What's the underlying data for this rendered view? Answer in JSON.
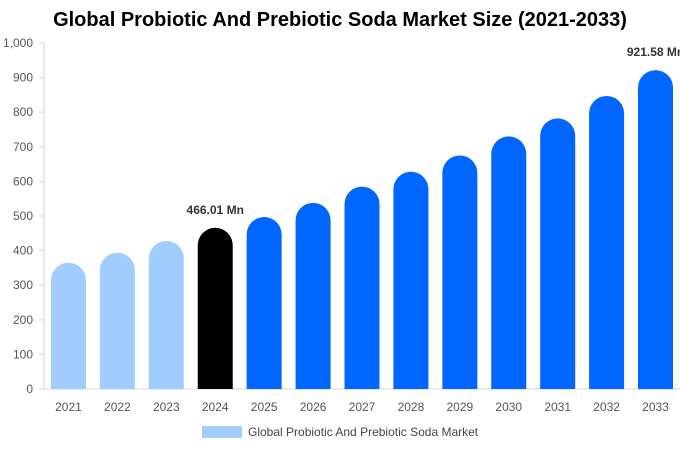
{
  "chart_data": {
    "type": "bar",
    "title": "Global Probiotic And Prebiotic Soda Market Size (2021-2033)",
    "categories": [
      "2021",
      "2022",
      "2023",
      "2024",
      "2025",
      "2026",
      "2027",
      "2028",
      "2029",
      "2030",
      "2031",
      "2032",
      "2033"
    ],
    "series": [
      {
        "name": "Global Probiotic And Prebiotic Soda Market",
        "values": [
          365,
          394,
          428,
          466.01,
          497,
          538,
          585,
          628,
          675,
          730,
          782,
          847,
          921.58
        ]
      }
    ],
    "ylim": [
      0,
      1000
    ],
    "yticks": [
      "0",
      "100",
      "200",
      "300",
      "400",
      "500",
      "600",
      "700",
      "800",
      "900",
      "1,000"
    ],
    "data_labels": [
      {
        "index": 3,
        "text": "466.01 Mn"
      },
      {
        "index": 12,
        "text": "921.58 Mn"
      }
    ],
    "bar_colors": {
      "historical": "#a0cdfd",
      "current": "#000000",
      "forecast": "#0066ff"
    },
    "current_index": 3,
    "grid": false,
    "legend_position": "bottom"
  }
}
